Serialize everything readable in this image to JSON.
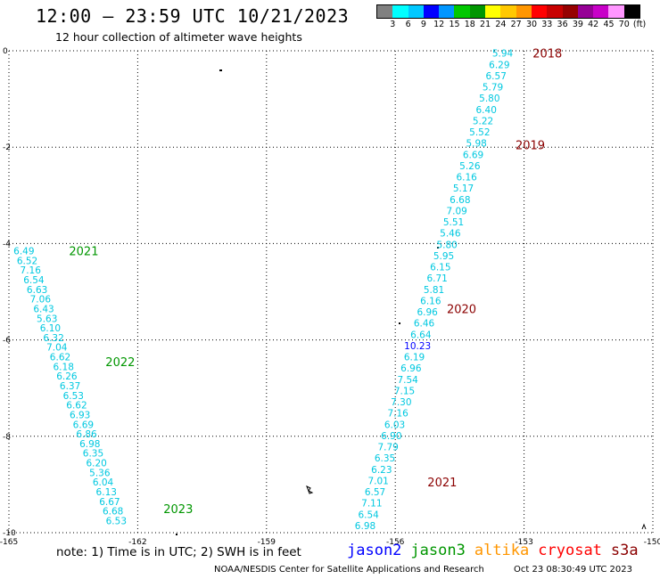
{
  "header": {
    "title": "12:00 — 23:59 UTC 10/21/2023",
    "subtitle": "12 hour collection of altimeter wave heights"
  },
  "colorbar": {
    "colors": [
      "#808080",
      "#00ffff",
      "#00c8ff",
      "#0000ff",
      "#0096ff",
      "#00c800",
      "#009600",
      "#ffff00",
      "#ffc800",
      "#ff9600",
      "#ff0000",
      "#c80000",
      "#960000",
      "#960096",
      "#c800c8",
      "#ff96ff",
      "#000000"
    ],
    "labels": [
      "3",
      "6",
      "9",
      "12",
      "15",
      "18",
      "21",
      "24",
      "27",
      "30",
      "33",
      "36",
      "39",
      "42",
      "45",
      "70",
      "(ft)"
    ]
  },
  "axes": {
    "x_ticks": [
      "-165",
      "-162",
      "-159",
      "-156",
      "-153",
      "-150"
    ],
    "y_ticks": [
      "0",
      "-2",
      "-4",
      "-6",
      "-8",
      "-10"
    ],
    "x_range": [
      -165,
      -150
    ],
    "y_range": [
      -10,
      0
    ]
  },
  "colors": {
    "wave_label": "#00c8e0",
    "wave_label_high": "#0000ff",
    "hour_jason3": "#009600",
    "hour_cryosat": "#8b0000"
  },
  "tracks": [
    {
      "name": "east-track",
      "start": [
        -153.5,
        -0.05
      ],
      "end": [
        -156.7,
        -9.85
      ],
      "values": [
        "5.94",
        "6.29",
        "6.57",
        "5.79",
        "5.80",
        "6.40",
        "5.22",
        "5.52",
        "5.98",
        "6.69",
        "5.26",
        "6.16",
        "5.17",
        "6.68",
        "7.09",
        "5.51",
        "5.46",
        "5.80",
        "5.95",
        "6.15",
        "6.71",
        "5.81",
        "6.16",
        "6.96",
        "6.46",
        "6.64",
        "10.23",
        "6.19",
        "6.96",
        "7.54",
        "7.15",
        "7.30",
        "7.16",
        "6.03",
        "6.90",
        "7.79",
        "6.35",
        "6.23",
        "7.01",
        "6.57",
        "7.11",
        "6.54",
        "6.98"
      ],
      "hours": [
        {
          "label": "2018",
          "lon": -152.8,
          "lat": -0.05
        },
        {
          "label": "2019",
          "lon": -153.2,
          "lat": -1.95
        },
        {
          "label": "2020",
          "lon": -154.8,
          "lat": -5.35
        },
        {
          "label": "2021",
          "lon": -155.25,
          "lat": -8.95
        }
      ]
    },
    {
      "name": "west-track",
      "start": [
        -164.65,
        -4.15
      ],
      "end": [
        -162.5,
        -9.75
      ],
      "values": [
        "6.49",
        "6.52",
        "7.16",
        "6.54",
        "6.63",
        "7.06",
        "6.43",
        "5.63",
        "6.10",
        "6.32",
        "7.04",
        "6.62",
        "6.18",
        "6.26",
        "6.37",
        "6.53",
        "6.62",
        "6.93",
        "6.69",
        "6.86",
        "6.98",
        "6.35",
        "6.20",
        "5.36",
        "6.04",
        "6.13",
        "6.67",
        "6.68",
        "6.53"
      ],
      "hours": [
        {
          "label": "2021",
          "lon": -163.6,
          "lat": -4.15
        },
        {
          "label": "2022",
          "lon": -162.75,
          "lat": -6.45
        },
        {
          "label": "2023",
          "lon": -161.4,
          "lat": -9.5
        }
      ]
    }
  ],
  "satellites": [
    {
      "name": "jason2",
      "color": "#0000ff"
    },
    {
      "name": "jason3",
      "color": "#009600"
    },
    {
      "name": "altika",
      "color": "#ff9600"
    },
    {
      "name": "cryosat",
      "color": "#ff0000"
    },
    {
      "name": "s3a",
      "color": "#8b0000"
    }
  ],
  "note": "note:  1) Time is in UTC;  2) SWH is in feet",
  "footer": {
    "credit": "NOAA/NESDIS Center for Satellite Applications and Research",
    "timestamp": "Oct 23 08:30:49 UTC 2023"
  }
}
